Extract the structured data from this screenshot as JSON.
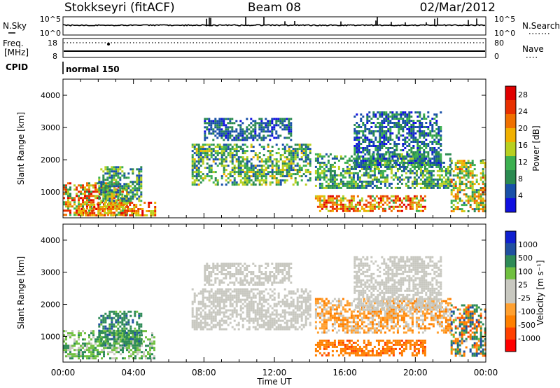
{
  "header": {
    "radar": "Stokkseyri (fitACF)",
    "beam": "Beam 08",
    "date": "02/Mar/2012"
  },
  "status_panels": {
    "nsky_label": "N.Sky",
    "nsearch_label": "N.Search",
    "noise_ticks": [
      "10^5",
      "10^0"
    ],
    "freq_label_1": "Freq.",
    "freq_label_2": "[MHz]",
    "freq_ticks": [
      "18",
      "8"
    ],
    "nave_label": "Nave",
    "nave_ticks": [
      "80",
      "0"
    ],
    "cpid_label": "CPID",
    "cpid_value": "normal 150"
  },
  "colors": {
    "power_scale": [
      "#1010e0",
      "#1850a8",
      "#2a8a50",
      "#3cb050",
      "#b8d020",
      "#f0b000",
      "#f07000",
      "#e83000",
      "#e00000"
    ],
    "velocity_scale": [
      "#ff0000",
      "#ff4000",
      "#ff8000",
      "#ffa030",
      "#c8c8c0",
      "#c8c8c0",
      "#70c040",
      "#2e8b57",
      "#2050a0",
      "#1020d0"
    ]
  },
  "chart_data": [
    {
      "type": "heatmap",
      "name": "power",
      "ylabel": "Slant Range [km]",
      "yticks": [
        "1000",
        "2000",
        "3000",
        "4000"
      ],
      "ylim": [
        200,
        4500
      ],
      "xlim": [
        0,
        24
      ],
      "colorbar_label": "Power [dB]",
      "colorbar_ticks": [
        "4",
        "8",
        "12",
        "16",
        "20",
        "24",
        "28"
      ],
      "colorbar_range": [
        0,
        30
      ],
      "echo_regions": [
        {
          "t0": 0.0,
          "t1": 3.6,
          "r0": 300,
          "r1": 1300,
          "v0": 8,
          "v1": 30
        },
        {
          "t0": 1.0,
          "t1": 5.2,
          "r0": 300,
          "r1": 700,
          "v0": 14,
          "v1": 28
        },
        {
          "t0": 2.0,
          "t1": 4.4,
          "r0": 700,
          "r1": 1800,
          "v0": 4,
          "v1": 16
        },
        {
          "t0": 7.3,
          "t1": 14.0,
          "r0": 1200,
          "r1": 2500,
          "v0": 4,
          "v1": 18
        },
        {
          "t0": 8.0,
          "t1": 13.0,
          "r0": 2600,
          "r1": 3300,
          "v0": 2,
          "v1": 10
        },
        {
          "t0": 14.3,
          "t1": 20.5,
          "r0": 400,
          "r1": 900,
          "v0": 12,
          "v1": 28
        },
        {
          "t0": 14.3,
          "t1": 22.0,
          "r0": 1100,
          "r1": 2200,
          "v0": 4,
          "v1": 16
        },
        {
          "t0": 16.5,
          "t1": 21.5,
          "r0": 1800,
          "r1": 3500,
          "v0": 2,
          "v1": 12
        },
        {
          "t0": 22.0,
          "t1": 24.0,
          "r0": 400,
          "r1": 2000,
          "v0": 6,
          "v1": 24
        }
      ]
    },
    {
      "type": "heatmap",
      "name": "velocity",
      "xlabel": "Time UT",
      "ylabel": "Slant Range [km]",
      "yticks": [
        "1000",
        "2000",
        "3000",
        "4000"
      ],
      "ylim": [
        200,
        4500
      ],
      "xlim": [
        0,
        24
      ],
      "xticks": [
        "00:00",
        "04:00",
        "08:00",
        "12:00",
        "16:00",
        "20:00",
        "00:00"
      ],
      "colorbar_label": "Velocity [m s⁻¹]",
      "colorbar_ticks": [
        "1000",
        "500",
        "100",
        "25",
        "-25",
        "-100",
        "-500",
        "-1000"
      ],
      "echo_regions": [
        {
          "t0": 0.0,
          "t1": 5.2,
          "r0": 300,
          "r1": 1200,
          "v0": -25,
          "v1": 150
        },
        {
          "t0": 2.0,
          "t1": 4.4,
          "r0": 700,
          "r1": 1800,
          "v0": 25,
          "v1": 600
        },
        {
          "t0": 7.3,
          "t1": 14.0,
          "r0": 1200,
          "r1": 2500,
          "v0": -25,
          "v1": 25
        },
        {
          "t0": 8.0,
          "t1": 13.0,
          "r0": 2600,
          "r1": 3300,
          "v0": -25,
          "v1": 25
        },
        {
          "t0": 14.3,
          "t1": 20.5,
          "r0": 400,
          "r1": 900,
          "v0": -600,
          "v1": -100
        },
        {
          "t0": 14.3,
          "t1": 22.0,
          "r0": 1100,
          "r1": 2200,
          "v0": -150,
          "v1": 25
        },
        {
          "t0": 16.5,
          "t1": 21.5,
          "r0": 1800,
          "r1": 3500,
          "v0": -25,
          "v1": 25
        },
        {
          "t0": 22.0,
          "t1": 24.0,
          "r0": 400,
          "r1": 2000,
          "v0": -600,
          "v1": 800
        }
      ]
    }
  ]
}
